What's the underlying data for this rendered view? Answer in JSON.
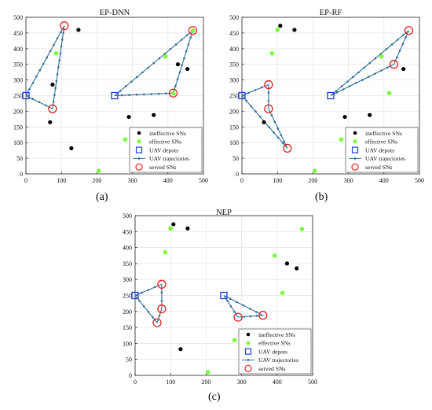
{
  "chart_data": [
    {
      "type": "scatter",
      "title": "EP-DNN",
      "caption": "(a)",
      "xlim": [
        0,
        500
      ],
      "ylim": [
        0,
        500
      ],
      "xticks": [
        0,
        100,
        200,
        300,
        400,
        500
      ],
      "yticks": [
        0,
        50,
        100,
        150,
        200,
        250,
        300,
        350,
        400,
        450,
        500
      ],
      "grid": true,
      "legend_position": "bottom-right",
      "ineffective": [
        [
          68,
          165
        ],
        [
          75,
          285
        ],
        [
          128,
          82
        ],
        [
          148,
          460
        ],
        [
          290,
          182
        ],
        [
          360,
          188
        ],
        [
          428,
          350
        ],
        [
          455,
          335
        ]
      ],
      "effective": [
        [
          85,
          385
        ],
        [
          205,
          10
        ],
        [
          280,
          110
        ],
        [
          393,
          375
        ],
        [
          415,
          258
        ],
        [
          470,
          458
        ]
      ],
      "depots": [
        [
          0,
          250
        ],
        [
          250,
          250
        ]
      ],
      "served": [
        [
          75,
          208
        ],
        [
          108,
          473
        ],
        [
          415,
          258
        ],
        [
          470,
          458
        ]
      ],
      "trajectories": [
        [
          [
            0,
            250
          ],
          [
            108,
            473
          ],
          [
            75,
            208
          ],
          [
            0,
            250
          ]
        ],
        [
          [
            250,
            250
          ],
          [
            470,
            458
          ],
          [
            415,
            258
          ],
          [
            250,
            250
          ]
        ]
      ]
    },
    {
      "type": "scatter",
      "title": "EP-RF",
      "caption": "(b)",
      "xlim": [
        0,
        500
      ],
      "ylim": [
        0,
        500
      ],
      "xticks": [
        0,
        100,
        200,
        300,
        400,
        500
      ],
      "yticks": [
        0,
        50,
        100,
        150,
        200,
        250,
        300,
        350,
        400,
        450,
        500
      ],
      "grid": true,
      "legend_position": "bottom-right",
      "ineffective": [
        [
          62,
          165
        ],
        [
          108,
          473
        ],
        [
          148,
          460
        ],
        [
          290,
          182
        ],
        [
          360,
          188
        ],
        [
          455,
          335
        ]
      ],
      "effective": [
        [
          100,
          460
        ],
        [
          205,
          10
        ],
        [
          280,
          110
        ],
        [
          393,
          375
        ],
        [
          415,
          258
        ],
        [
          85,
          385
        ]
      ],
      "depots": [
        [
          0,
          250
        ],
        [
          250,
          250
        ]
      ],
      "served": [
        [
          75,
          285
        ],
        [
          75,
          208
        ],
        [
          128,
          82
        ],
        [
          428,
          350
        ],
        [
          470,
          458
        ]
      ],
      "trajectories": [
        [
          [
            0,
            250
          ],
          [
            75,
            285
          ],
          [
            75,
            208
          ],
          [
            128,
            82
          ],
          [
            0,
            250
          ]
        ],
        [
          [
            250,
            250
          ],
          [
            470,
            458
          ],
          [
            428,
            350
          ],
          [
            250,
            250
          ]
        ]
      ]
    },
    {
      "type": "scatter",
      "title": "NEP",
      "caption": "(c)",
      "xlim": [
        0,
        500
      ],
      "ylim": [
        0,
        500
      ],
      "xticks": [
        0,
        100,
        200,
        300,
        400,
        500
      ],
      "yticks": [
        0,
        50,
        100,
        150,
        200,
        250,
        300,
        350,
        400,
        450,
        500
      ],
      "grid": true,
      "legend_position": "bottom-right",
      "ineffective": [
        [
          108,
          473
        ],
        [
          128,
          82
        ],
        [
          148,
          460
        ],
        [
          428,
          350
        ],
        [
          455,
          335
        ]
      ],
      "effective": [
        [
          85,
          385
        ],
        [
          100,
          460
        ],
        [
          205,
          10
        ],
        [
          280,
          110
        ],
        [
          393,
          375
        ],
        [
          415,
          258
        ],
        [
          470,
          458
        ]
      ],
      "depots": [
        [
          0,
          250
        ],
        [
          250,
          250
        ]
      ],
      "served": [
        [
          62,
          165
        ],
        [
          75,
          285
        ],
        [
          75,
          208
        ],
        [
          290,
          182
        ],
        [
          360,
          188
        ]
      ],
      "trajectories": [
        [
          [
            0,
            250
          ],
          [
            75,
            285
          ],
          [
            75,
            208
          ],
          [
            62,
            165
          ],
          [
            0,
            250
          ]
        ],
        [
          [
            250,
            250
          ],
          [
            290,
            182
          ],
          [
            360,
            188
          ],
          [
            250,
            250
          ]
        ]
      ]
    }
  ],
  "legend": {
    "ineffective": "ineffective SNs",
    "effective": "effective SNs",
    "depots": "UAV depots",
    "trajectories": "UAV trajectories",
    "served": "served SNs"
  },
  "colors": {
    "ineffective": "#000000",
    "effective": "#7CFC3C",
    "depot": "#1a3fcc",
    "trajectory": "#2f6f95",
    "served": "#e02020",
    "grid": "#e6e6e6"
  }
}
